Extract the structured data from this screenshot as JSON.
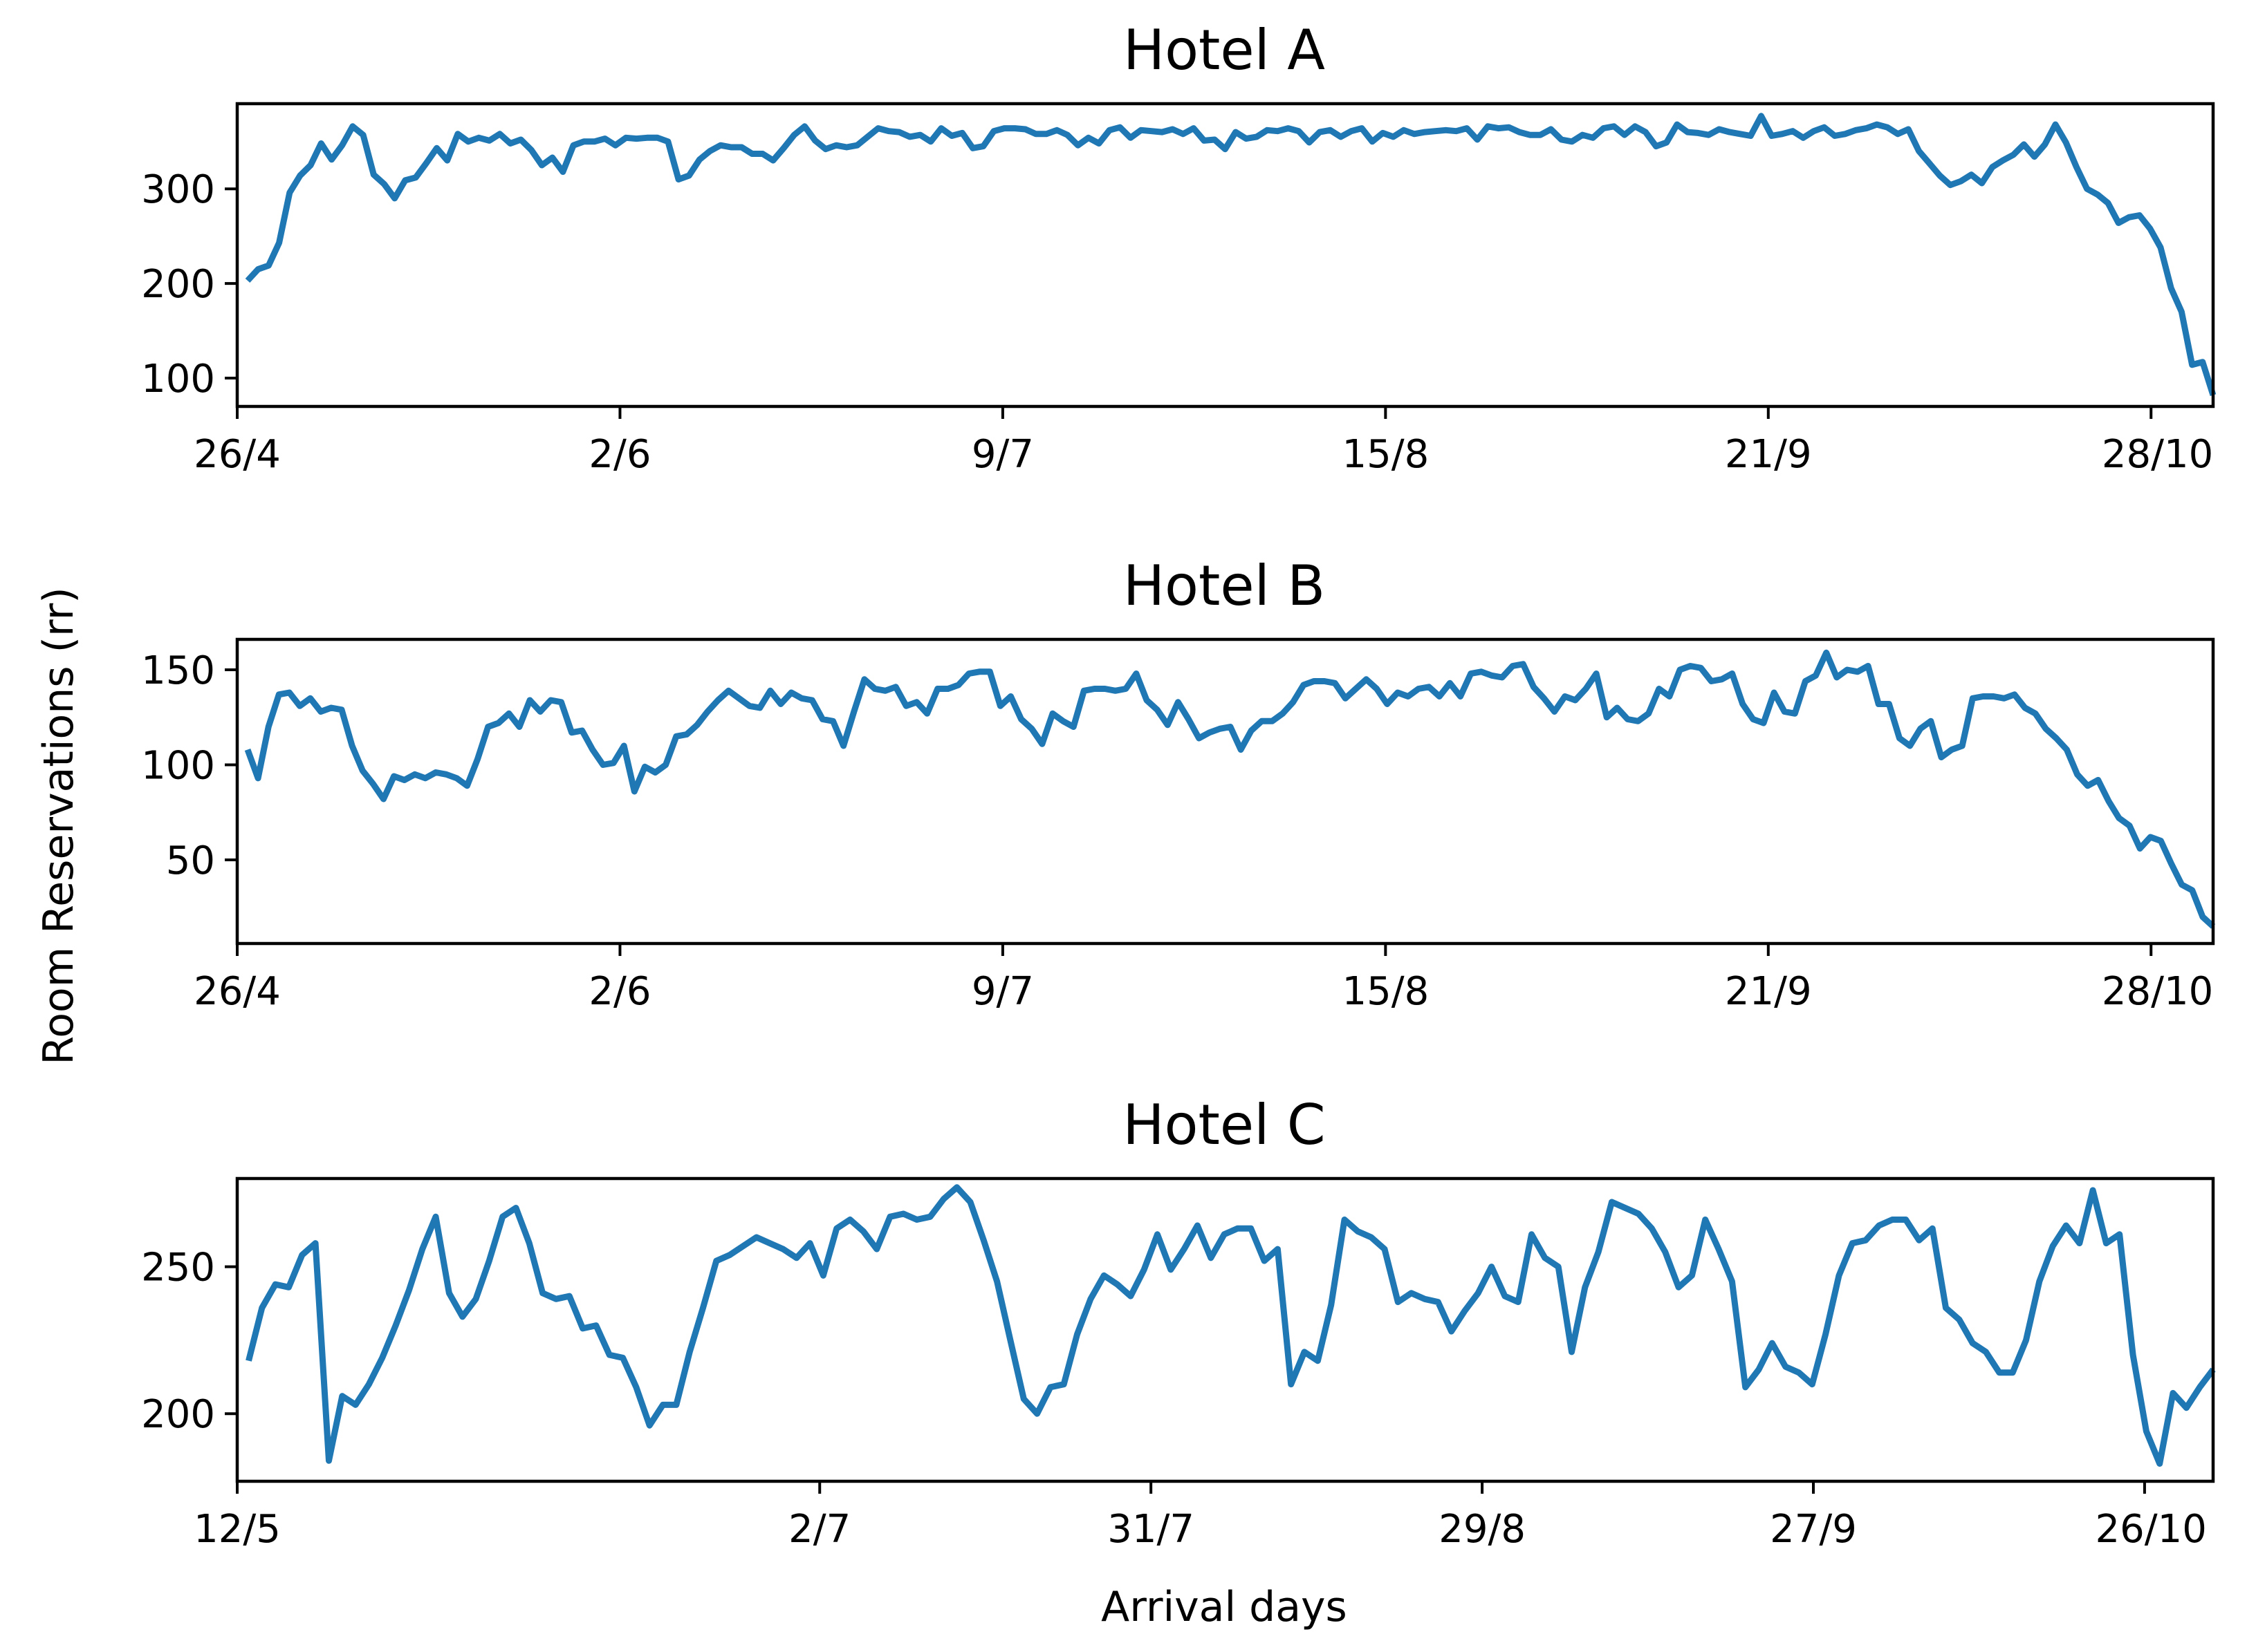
{
  "figure": {
    "ylabel": "Room Reservations (rr)",
    "xlabel": "Arrival days"
  },
  "colors": {
    "line": "#1f77b4",
    "axes": "#000000"
  },
  "chart_data": [
    {
      "type": "line",
      "title": "Hotel A",
      "x_tick_labels": [
        "26/4",
        "2/6",
        "9/7",
        "15/8",
        "21/9",
        "28/10"
      ],
      "y_ticks": [
        100,
        200,
        300
      ],
      "ylim": [
        70,
        390
      ],
      "x_start": "26/4",
      "x_end": "3/11",
      "series": [
        {
          "values": [
            203,
            215,
            219,
            243,
            296,
            314,
            325,
            348,
            331,
            346,
            366,
            357,
            315,
            305,
            290,
            309,
            312,
            327,
            343,
            330,
            358,
            350,
            354,
            351,
            358,
            348,
            352,
            341,
            325,
            333,
            318,
            346,
            350,
            350,
            353,
            346,
            354,
            353,
            354,
            354,
            350,
            310,
            314,
            331,
            340,
            346,
            344,
            344,
            337,
            337,
            330,
            343,
            357,
            366,
            351,
            342,
            346,
            344,
            346,
            355,
            364,
            361,
            360,
            355,
            357,
            350,
            364,
            356,
            359,
            343,
            345,
            361,
            364,
            364,
            363,
            358,
            358,
            362,
            357,
            346,
            354,
            348,
            362,
            365,
            354,
            362,
            361,
            360,
            363,
            358,
            364,
            351,
            352,
            342,
            360,
            353,
            355,
            362,
            361,
            364,
            361,
            349,
            360,
            362,
            355,
            361,
            364,
            350,
            359,
            355,
            362,
            358,
            360,
            361,
            362,
            361,
            364,
            352,
            366,
            364,
            365,
            360,
            357,
            357,
            363,
            352,
            350,
            357,
            354,
            364,
            366,
            357,
            366,
            360,
            345,
            349,
            368,
            360,
            359,
            357,
            363,
            360,
            358,
            356,
            377,
            356,
            358,
            361,
            354,
            361,
            365,
            356,
            358,
            362,
            364,
            368,
            365,
            358,
            363,
            340,
            327,
            314,
            304,
            308,
            315,
            306,
            323,
            330,
            336,
            347,
            334,
            347,
            368,
            349,
            323,
            300,
            294,
            285,
            264,
            270,
            272,
            258,
            238,
            195,
            170,
            114,
            117,
            82
          ]
        }
      ]
    },
    {
      "type": "line",
      "title": "Hotel B",
      "x_tick_labels": [
        "26/4",
        "2/6",
        "9/7",
        "15/8",
        "21/9",
        "28/10"
      ],
      "y_ticks": [
        50,
        100,
        150
      ],
      "ylim": [
        6,
        166
      ],
      "x_start": "26/4",
      "x_end": "3/11",
      "series": [
        {
          "values": [
            108,
            93,
            120,
            137,
            138,
            131,
            135,
            128,
            130,
            129,
            110,
            97,
            90,
            82,
            94,
            92,
            95,
            93,
            96,
            95,
            93,
            89,
            103,
            120,
            122,
            127,
            120,
            134,
            128,
            134,
            133,
            117,
            118,
            108,
            100,
            101,
            110,
            86,
            99,
            96,
            100,
            115,
            116,
            121,
            128,
            134,
            139,
            135,
            131,
            130,
            139,
            132,
            138,
            135,
            134,
            124,
            123,
            110,
            128,
            145,
            140,
            139,
            141,
            131,
            133,
            127,
            140,
            140,
            142,
            148,
            149,
            149,
            131,
            136,
            124,
            119,
            111,
            127,
            123,
            120,
            139,
            140,
            140,
            139,
            140,
            148,
            134,
            129,
            121,
            133,
            124,
            114,
            117,
            119,
            120,
            108,
            118,
            123,
            123,
            127,
            133,
            142,
            144,
            144,
            143,
            135,
            140,
            145,
            140,
            132,
            138,
            136,
            140,
            141,
            136,
            143,
            136,
            148,
            149,
            147,
            146,
            152,
            153,
            141,
            135,
            128,
            136,
            134,
            140,
            148,
            125,
            130,
            124,
            123,
            127,
            140,
            136,
            150,
            152,
            151,
            144,
            145,
            148,
            132,
            124,
            122,
            138,
            128,
            127,
            144,
            147,
            159,
            146,
            150,
            149,
            152,
            132,
            132,
            114,
            110,
            119,
            123,
            104,
            108,
            110,
            135,
            136,
            136,
            135,
            137,
            130,
            127,
            119,
            114,
            108,
            95,
            89,
            92,
            81,
            72,
            68,
            56,
            62,
            60,
            48,
            37,
            34,
            20,
            15
          ]
        }
      ]
    },
    {
      "type": "line",
      "title": "Hotel C",
      "x_tick_labels": [
        "12/5",
        "2/7",
        "31/7",
        "29/8",
        "27/9",
        "26/10"
      ],
      "y_ticks": [
        200,
        250
      ],
      "ylim": [
        177,
        280
      ],
      "x_start": "12/5",
      "x_end": "1/11",
      "series": [
        {
          "values": [
            218,
            236,
            244,
            243,
            254,
            258,
            184,
            206,
            203,
            210,
            219,
            230,
            242,
            256,
            267,
            241,
            233,
            239,
            252,
            267,
            270,
            258,
            241,
            239,
            240,
            229,
            230,
            220,
            219,
            209,
            196,
            203,
            203,
            221,
            236,
            252,
            254,
            257,
            260,
            258,
            256,
            253,
            258,
            247,
            263,
            266,
            262,
            256,
            267,
            268,
            266,
            267,
            273,
            277,
            272,
            259,
            245,
            225,
            205,
            200,
            209,
            210,
            227,
            239,
            247,
            244,
            240,
            249,
            261,
            249,
            256,
            264,
            253,
            261,
            263,
            263,
            252,
            256,
            210,
            221,
            218,
            237,
            266,
            262,
            260,
            256,
            238,
            241,
            239,
            238,
            228,
            235,
            241,
            250,
            240,
            238,
            261,
            253,
            250,
            221,
            243,
            255,
            272,
            270,
            268,
            263,
            255,
            243,
            247,
            266,
            256,
            245,
            209,
            215,
            224,
            216,
            214,
            210,
            227,
            247,
            258,
            259,
            264,
            266,
            266,
            259,
            263,
            236,
            232,
            224,
            221,
            214,
            214,
            225,
            245,
            257,
            264,
            258,
            276,
            258,
            261,
            220,
            194,
            183,
            207,
            202,
            209,
            215
          ]
        }
      ]
    }
  ]
}
